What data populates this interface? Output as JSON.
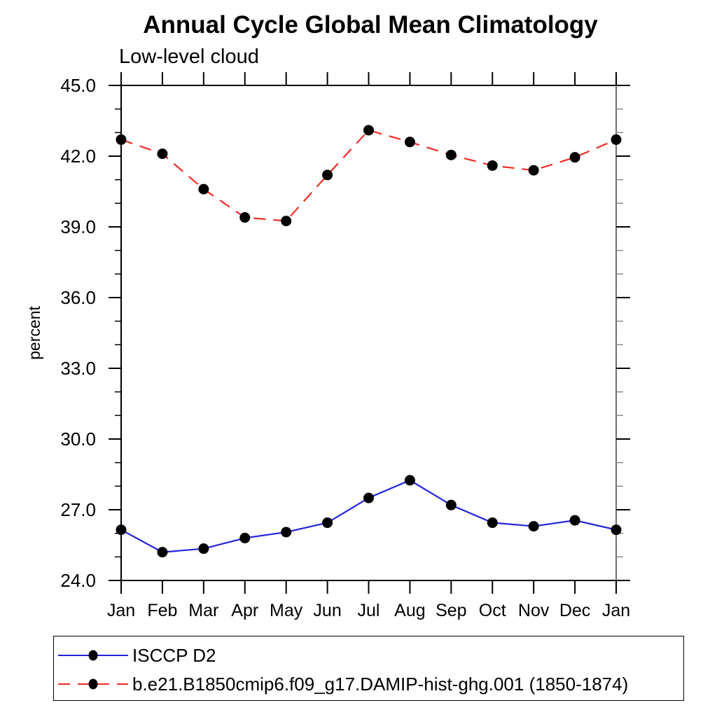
{
  "chart_data": {
    "type": "line",
    "title": "Annual Cycle Global Mean Climatology",
    "subtitle": "Low-level cloud",
    "ylabel": "percent",
    "xlabel": "",
    "categories": [
      "Jan",
      "Feb",
      "Mar",
      "Apr",
      "May",
      "Jun",
      "Jul",
      "Aug",
      "Sep",
      "Oct",
      "Nov",
      "Dec",
      "Jan"
    ],
    "ylim": [
      24.0,
      45.0
    ],
    "ytick_major_step": 3.0,
    "ytick_minor_step": 1.0,
    "ytick_labels": [
      "45.0",
      "42.0",
      "39.0",
      "36.0",
      "33.0",
      "30.0",
      "27.0",
      "24.0"
    ],
    "grid": false,
    "legend_position": "bottom-left-box",
    "series": [
      {
        "name": "ISCCP D2",
        "line_style": "solid",
        "line_color": "#2424dd",
        "marker": "filled-circle",
        "marker_color": "#000000",
        "values": [
          26.15,
          25.2,
          25.35,
          25.8,
          26.05,
          26.45,
          27.5,
          28.25,
          27.2,
          26.45,
          26.3,
          26.55,
          26.15
        ]
      },
      {
        "name": "b.e21.B1850cmip6.f09_g17.DAMIP-hist-ghg.001 (1850-1874)",
        "line_style": "dashed",
        "line_color": "#ee2c24",
        "marker": "filled-circle",
        "marker_color": "#000000",
        "values": [
          42.7,
          42.1,
          40.6,
          39.4,
          39.25,
          41.2,
          43.1,
          42.6,
          42.05,
          41.6,
          41.4,
          41.95,
          42.7
        ]
      }
    ]
  }
}
